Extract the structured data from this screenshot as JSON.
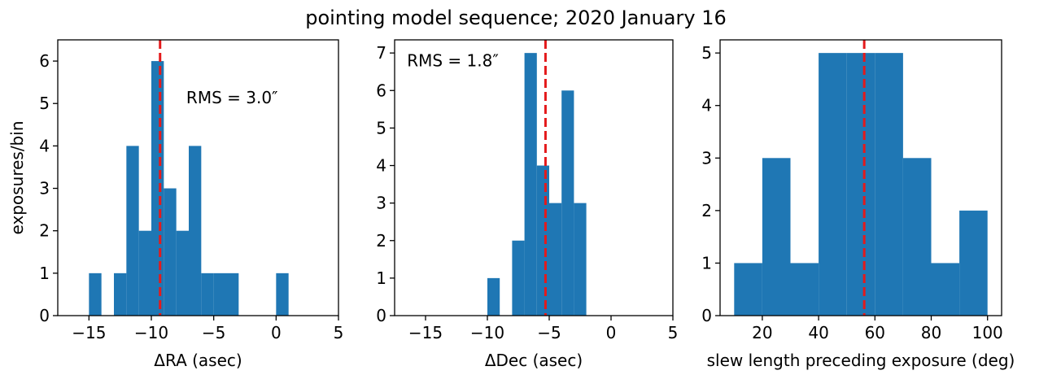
{
  "figure": {
    "title": "pointing model sequence; 2020 January 16"
  },
  "chart_data": [
    {
      "type": "bar",
      "histogram": true,
      "xlabel": "ΔRA (asec)",
      "ylabel": "exposures/bin",
      "xlim": [
        -17.5,
        5
      ],
      "ylim": [
        0,
        6.5
      ],
      "xticks": [
        -15,
        -10,
        -5,
        0,
        5
      ],
      "yticks": [
        0,
        1,
        2,
        3,
        4,
        5,
        6
      ],
      "bar_color": "#1f77b4",
      "bins": [
        {
          "x0": -15.0,
          "x1": -14.0,
          "value": 1
        },
        {
          "x0": -13.0,
          "x1": -12.0,
          "value": 1
        },
        {
          "x0": -12.0,
          "x1": -11.0,
          "value": 4
        },
        {
          "x0": -11.0,
          "x1": -10.0,
          "value": 2
        },
        {
          "x0": -10.0,
          "x1": -9.0,
          "value": 6
        },
        {
          "x0": -9.0,
          "x1": -8.0,
          "value": 3
        },
        {
          "x0": -8.0,
          "x1": -7.0,
          "value": 2
        },
        {
          "x0": -7.0,
          "x1": -6.0,
          "value": 4
        },
        {
          "x0": -6.0,
          "x1": -5.0,
          "value": 1
        },
        {
          "x0": -5.0,
          "x1": -4.0,
          "value": 1
        },
        {
          "x0": -4.0,
          "x1": -3.0,
          "value": 1
        },
        {
          "x0": 0.0,
          "x1": 1.0,
          "value": 1
        }
      ],
      "ref_line": {
        "x": -9.3,
        "color": "#e41a1c",
        "style": "dashed"
      },
      "annotation": {
        "text": "RMS = 3.0″",
        "x": -7.2,
        "y": 5.0
      }
    },
    {
      "type": "bar",
      "histogram": true,
      "xlabel": "ΔDec (asec)",
      "ylabel": "",
      "xlim": [
        -17.5,
        5
      ],
      "ylim": [
        0,
        7.35
      ],
      "xticks": [
        -15,
        -10,
        -5,
        0,
        5
      ],
      "yticks": [
        0,
        1,
        2,
        3,
        4,
        5,
        6,
        7
      ],
      "bar_color": "#1f77b4",
      "bins": [
        {
          "x0": -10.0,
          "x1": -9.0,
          "value": 1
        },
        {
          "x0": -8.0,
          "x1": -7.0,
          "value": 2
        },
        {
          "x0": -7.0,
          "x1": -6.0,
          "value": 7
        },
        {
          "x0": -6.0,
          "x1": -5.0,
          "value": 4
        },
        {
          "x0": -5.0,
          "x1": -4.0,
          "value": 3
        },
        {
          "x0": -4.0,
          "x1": -3.0,
          "value": 6
        },
        {
          "x0": -3.0,
          "x1": -2.0,
          "value": 3
        }
      ],
      "ref_line": {
        "x": -5.3,
        "color": "#e41a1c",
        "style": "dashed"
      },
      "annotation": {
        "text": "RMS = 1.8″",
        "x": -16.5,
        "y": 6.65
      }
    },
    {
      "type": "bar",
      "histogram": true,
      "xlabel": "slew length preceding exposure (deg)",
      "ylabel": "",
      "xlim": [
        5,
        105
      ],
      "ylim": [
        0,
        5.25
      ],
      "xticks": [
        20,
        40,
        60,
        80,
        100
      ],
      "yticks": [
        0,
        1,
        2,
        3,
        4,
        5
      ],
      "bar_color": "#1f77b4",
      "bins": [
        {
          "x0": 10,
          "x1": 20,
          "value": 1
        },
        {
          "x0": 20,
          "x1": 30,
          "value": 3
        },
        {
          "x0": 30,
          "x1": 40,
          "value": 1
        },
        {
          "x0": 40,
          "x1": 50,
          "value": 5
        },
        {
          "x0": 50,
          "x1": 60,
          "value": 5
        },
        {
          "x0": 60,
          "x1": 70,
          "value": 5
        },
        {
          "x0": 70,
          "x1": 80,
          "value": 3
        },
        {
          "x0": 80,
          "x1": 90,
          "value": 1
        },
        {
          "x0": 90,
          "x1": 100,
          "value": 2
        }
      ],
      "ref_line": {
        "x": 56.2,
        "color": "#e41a1c",
        "style": "dashed"
      }
    }
  ]
}
